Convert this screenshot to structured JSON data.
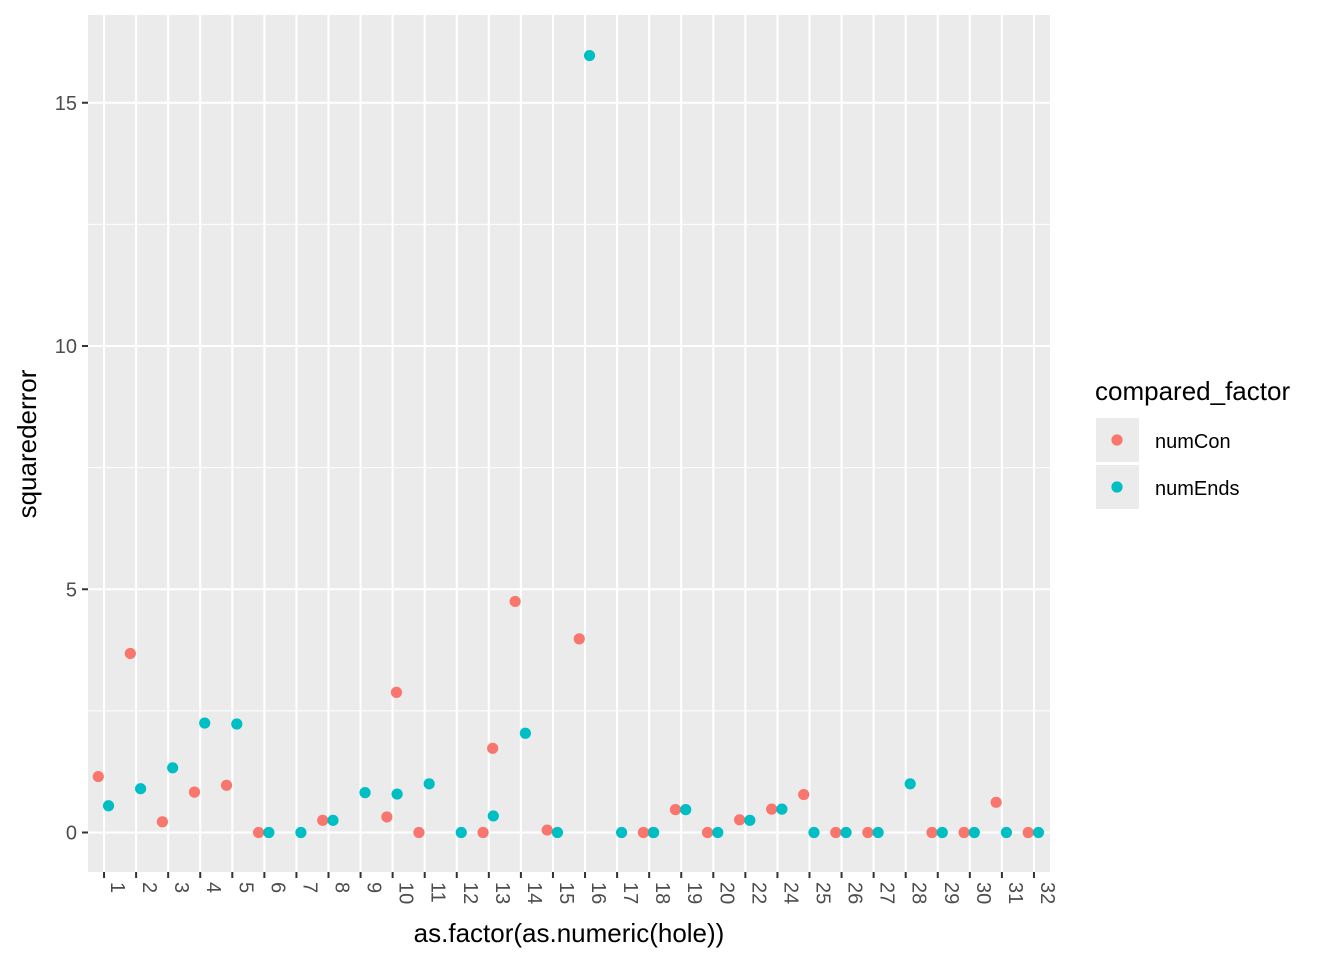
{
  "chart_data": {
    "type": "scatter",
    "title": "",
    "xlabel": "as.factor(as.numeric(hole))",
    "ylabel": "squarederror",
    "categories": [
      "1",
      "2",
      "3",
      "4",
      "5",
      "6",
      "7",
      "8",
      "9",
      "10",
      "11",
      "12",
      "13",
      "14",
      "15",
      "16",
      "17",
      "18",
      "19",
      "20",
      "22",
      "24",
      "25",
      "26",
      "27",
      "28",
      "29",
      "30",
      "31",
      "32"
    ],
    "y_ticks": [
      0,
      5,
      10,
      15
    ],
    "ylim": [
      -0.8,
      16.8
    ],
    "grid": true,
    "legend": {
      "title": "compared_factor",
      "placement": "right",
      "entries": [
        {
          "name": "numCon",
          "color": "#F8766D"
        },
        {
          "name": "numEnds",
          "color": "#00BFC4"
        }
      ]
    },
    "series": [
      {
        "name": "numCon",
        "color": "#F8766D",
        "points": [
          {
            "x": "1",
            "y": 1.15
          },
          {
            "x": "2",
            "y": 3.68
          },
          {
            "x": "3",
            "y": 0.22
          },
          {
            "x": "4",
            "y": 0.83
          },
          {
            "x": "5",
            "y": 0.97
          },
          {
            "x": "6",
            "y": 0.0
          },
          {
            "x": "8",
            "y": 0.25
          },
          {
            "x": "10",
            "y": 0.32
          },
          {
            "x": "10",
            "y": 2.88
          },
          {
            "x": "11",
            "y": 0.0
          },
          {
            "x": "13",
            "y": 0.0
          },
          {
            "x": "13",
            "y": 1.73
          },
          {
            "x": "14",
            "y": 4.75
          },
          {
            "x": "15",
            "y": 0.05
          },
          {
            "x": "16",
            "y": 3.98
          },
          {
            "x": "18",
            "y": 0.0
          },
          {
            "x": "18",
            "y": 0.0
          },
          {
            "x": "19",
            "y": 0.47
          },
          {
            "x": "20",
            "y": 0.0
          },
          {
            "x": "22",
            "y": 0.26
          },
          {
            "x": "24",
            "y": 0.48
          },
          {
            "x": "25",
            "y": 0.78
          },
          {
            "x": "26",
            "y": 0.0
          },
          {
            "x": "27",
            "y": 0.0
          },
          {
            "x": "29",
            "y": 0.0
          },
          {
            "x": "30",
            "y": 0.0
          },
          {
            "x": "31",
            "y": 0.62
          },
          {
            "x": "32",
            "y": 0.0
          }
        ]
      },
      {
        "name": "numEnds",
        "color": "#00BFC4",
        "points": [
          {
            "x": "1",
            "y": 0.55
          },
          {
            "x": "2",
            "y": 0.9
          },
          {
            "x": "3",
            "y": 1.33
          },
          {
            "x": "4",
            "y": 2.25
          },
          {
            "x": "5",
            "y": 2.23
          },
          {
            "x": "6",
            "y": 0.0
          },
          {
            "x": "7",
            "y": 0.0
          },
          {
            "x": "8",
            "y": 0.25
          },
          {
            "x": "9",
            "y": 0.82
          },
          {
            "x": "10",
            "y": 0.79
          },
          {
            "x": "11",
            "y": 1.0
          },
          {
            "x": "12",
            "y": 0.0
          },
          {
            "x": "13",
            "y": 0.34
          },
          {
            "x": "14",
            "y": 2.04
          },
          {
            "x": "15",
            "y": 0.0
          },
          {
            "x": "16",
            "y": 15.97
          },
          {
            "x": "17",
            "y": 0.0
          },
          {
            "x": "18",
            "y": 0.0
          },
          {
            "x": "19",
            "y": 0.47
          },
          {
            "x": "20",
            "y": 0.0
          },
          {
            "x": "22",
            "y": 0.25
          },
          {
            "x": "24",
            "y": 0.48
          },
          {
            "x": "25",
            "y": 0.0
          },
          {
            "x": "26",
            "y": 0.0
          },
          {
            "x": "27",
            "y": 0.0
          },
          {
            "x": "28",
            "y": 1.0
          },
          {
            "x": "29",
            "y": 0.0
          },
          {
            "x": "30",
            "y": 0.0
          },
          {
            "x": "31",
            "y": 0.0
          },
          {
            "x": "32",
            "y": 0.0
          }
        ]
      }
    ]
  }
}
